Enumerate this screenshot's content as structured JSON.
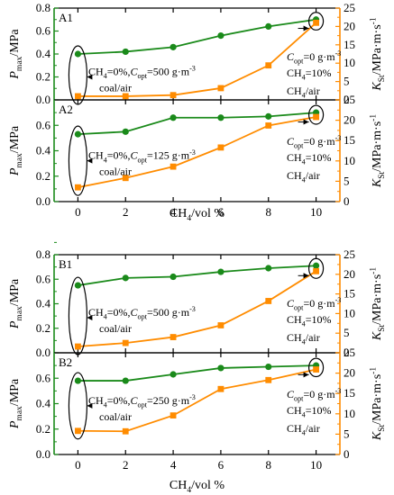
{
  "chart_data": [
    {
      "id": "A1",
      "type": "line",
      "panel_label": "A1",
      "x": [
        0,
        2,
        4,
        6,
        8,
        10
      ],
      "series": [
        {
          "key": "pmax",
          "values": [
            0.4,
            0.42,
            0.46,
            0.56,
            0.64,
            0.7
          ],
          "color": "#1a8a1a",
          "marker": "circle",
          "axis": "left"
        },
        {
          "key": "kst",
          "values": [
            1.0,
            1.0,
            1.3,
            3.2,
            9.4,
            21.0
          ],
          "color": "#ff8c00",
          "marker": "square",
          "axis": "right"
        }
      ],
      "ylim_left": [
        0,
        0.8
      ],
      "yticks_left": [
        "0.0",
        "0.2",
        "0.4",
        "0.6",
        "0.8"
      ],
      "ylim_right": [
        0,
        25
      ],
      "yticks_right": [
        "0",
        "5",
        "10",
        "15",
        "20",
        "25"
      ],
      "annotations": {
        "left_line1": "CH4=0%,Copt=500 g·m-3",
        "left_line2": "coal/air",
        "right_line1": "Copt=0 g·m-3",
        "right_line2": "CH4=10%",
        "right_line3": "CH4/air"
      }
    },
    {
      "id": "A2",
      "type": "line",
      "panel_label": "A2",
      "x": [
        0,
        2,
        4,
        6,
        8,
        10
      ],
      "series": [
        {
          "key": "pmax",
          "values": [
            0.53,
            0.55,
            0.66,
            0.66,
            0.67,
            0.7
          ],
          "color": "#1a8a1a",
          "marker": "circle",
          "axis": "left"
        },
        {
          "key": "kst",
          "values": [
            3.5,
            5.8,
            8.6,
            13.3,
            18.7,
            20.8
          ],
          "color": "#ff8c00",
          "marker": "square",
          "axis": "right"
        }
      ],
      "ylim_left": [
        0,
        0.8
      ],
      "yticks_left": [
        "0.0",
        "0.2",
        "0.4",
        "0.6"
      ],
      "ylim_right": [
        0,
        25
      ],
      "yticks_right": [
        "0",
        "5",
        "10",
        "15",
        "20",
        "25"
      ],
      "annotations": {
        "left_line1": "CH4=0%,Copt=125 g·m-3",
        "left_line2": "coal/air",
        "right_line1": "Copt=0 g·m-3",
        "right_line2": "CH4=10%",
        "right_line3": "CH4/air"
      }
    },
    {
      "id": "B1",
      "type": "line",
      "panel_label": "B1",
      "x": [
        0,
        2,
        4,
        6,
        8,
        10
      ],
      "series": [
        {
          "key": "pmax",
          "values": [
            0.55,
            0.61,
            0.62,
            0.66,
            0.69,
            0.71
          ],
          "color": "#1a8a1a",
          "marker": "circle",
          "axis": "left"
        },
        {
          "key": "kst",
          "values": [
            1.6,
            2.5,
            4.0,
            7.0,
            13.2,
            20.8
          ],
          "color": "#ff8c00",
          "marker": "square",
          "axis": "right"
        }
      ],
      "ylim_left": [
        0,
        0.8
      ],
      "yticks_left": [
        "0.0",
        "0.2",
        "0.4",
        "0.6",
        "0.8"
      ],
      "ylim_right": [
        0,
        25
      ],
      "yticks_right": [
        "0",
        "5",
        "10",
        "15",
        "20",
        "25"
      ],
      "annotations": {
        "left_line1": "CH4=0%,Copt=500 g·m-3",
        "left_line2": "coal/air",
        "right_line1": "Copt=0 g·m-3",
        "right_line2": "CH4=10%",
        "right_line3": "CH4/air"
      }
    },
    {
      "id": "B2",
      "type": "line",
      "panel_label": "B2",
      "x": [
        0,
        2,
        4,
        6,
        8,
        10
      ],
      "series": [
        {
          "key": "pmax",
          "values": [
            0.58,
            0.58,
            0.63,
            0.68,
            0.69,
            0.7
          ],
          "color": "#1a8a1a",
          "marker": "circle",
          "axis": "left"
        },
        {
          "key": "kst",
          "values": [
            5.8,
            5.7,
            9.6,
            16.1,
            18.3,
            20.9
          ],
          "color": "#ff8c00",
          "marker": "square",
          "axis": "right"
        }
      ],
      "ylim_left": [
        0,
        0.8
      ],
      "yticks_left": [
        "0.0",
        "0.2",
        "0.4",
        "0.6"
      ],
      "ylim_right": [
        0,
        25
      ],
      "yticks_right": [
        "0",
        "5",
        "10",
        "15",
        "20",
        "25"
      ],
      "annotations": {
        "left_line1": "CH4=0%,Copt=250 g·m-3",
        "left_line2": "coal/air",
        "right_line1": "Copt=0 g·m-3",
        "right_line2": "CH4=10%",
        "right_line3": "CH4/air"
      }
    }
  ],
  "axes": {
    "xlabel": "CH4/vol %",
    "xticks": [
      "0",
      "2",
      "4",
      "6",
      "8",
      "10"
    ],
    "ylabel_left": "Pmax/MPa",
    "ylabel_right": "KSt/MPa·m·s-1"
  },
  "colors": {
    "left_axis": "#1a8a1a",
    "right_axis": "#ff8c00"
  }
}
